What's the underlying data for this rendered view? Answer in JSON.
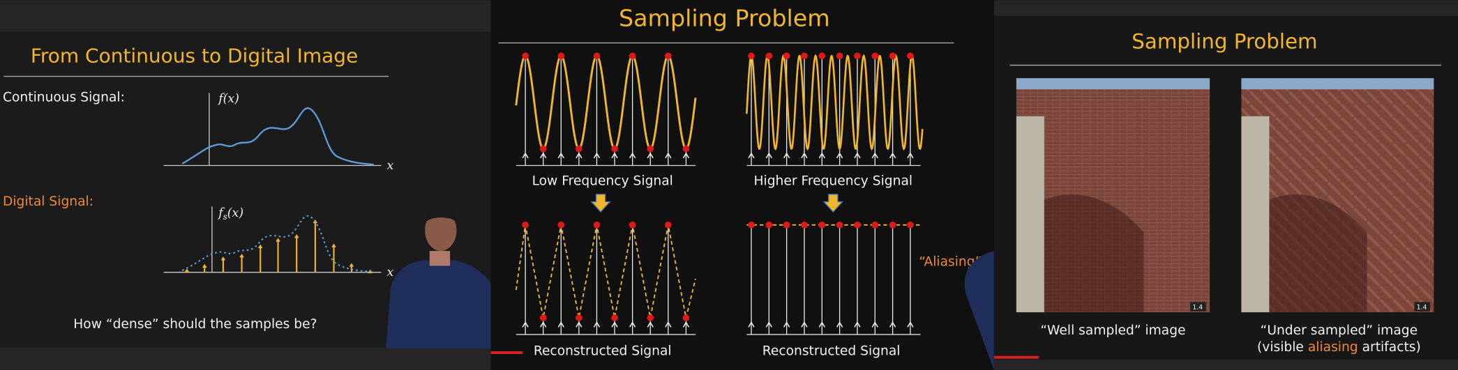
{
  "slides": [
    {
      "title": "From Continuous to Digital Image",
      "continuous_label": "Continuous Signal:",
      "digital_label": "Digital Signal:",
      "f_axis": "f(x)",
      "fs_axis": {
        "base": "f",
        "sub": "s",
        "rest": "(x)"
      },
      "x_axis_1": "x",
      "x_axis_2": "x",
      "question": "How “dense” should the samples be?"
    },
    {
      "title": "Sampling Problem",
      "low_label": "Low Frequency Signal",
      "high_label": "Higher Frequency Signal",
      "low_reconstructed": "Reconstructed Signal",
      "high_reconstructed": "Reconstructed Signal",
      "aliasing": "“Aliasing”"
    },
    {
      "title": "Sampling Problem",
      "left_caption": "“Well sampled” image",
      "right_caption": "“Under sampled” image",
      "right_caption_2": {
        "before": "(visible ",
        "highlight": "aliasing",
        "after": " artifacts)"
      },
      "left_badge": "1.4",
      "right_badge": "1.4"
    }
  ]
}
